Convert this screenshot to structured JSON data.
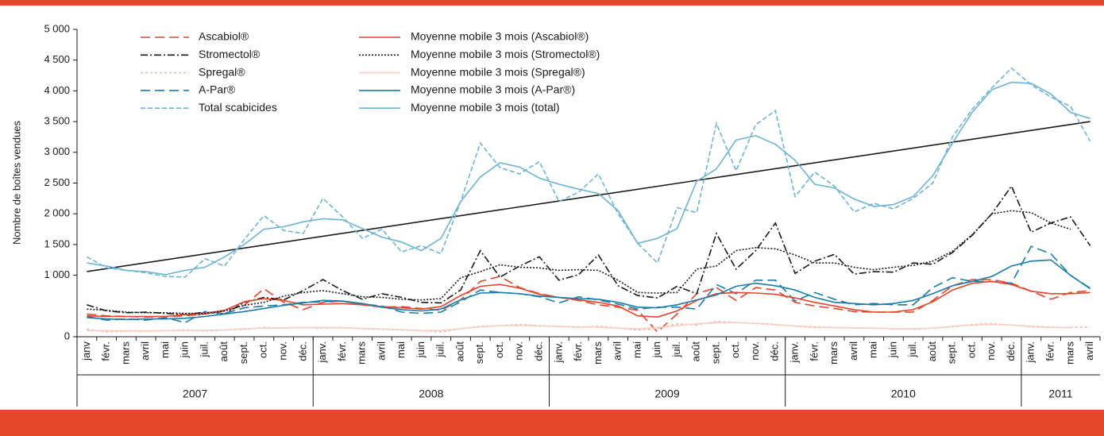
{
  "chart_data": {
    "type": "line",
    "ylabel": "Nombre de boîtes vendues",
    "ylim": [
      0,
      5000
    ],
    "yticks": [
      {
        "value": 0,
        "label": "0"
      },
      {
        "value": 1000,
        "label": "1 000"
      },
      {
        "value": 1500,
        "label": "1 500"
      },
      {
        "value": 2000,
        "label": "2 000"
      },
      {
        "value": 2500,
        "label": "2 500"
      },
      {
        "value": 3000,
        "label": "3 000"
      },
      {
        "value": 3500,
        "label": "3 500"
      },
      {
        "value": 4000,
        "label": "4 000"
      },
      {
        "value": 4500,
        "label": "4 500"
      },
      {
        "value": 5000,
        "label": "5 000"
      }
    ],
    "categories": [
      "janv",
      "févr.",
      "mars",
      "avril",
      "mai",
      "juin",
      "juil.",
      "août",
      "sept.",
      "oct.",
      "nov.",
      "déc.",
      "janv.",
      "févr.",
      "mars",
      "avril",
      "mai",
      "juin",
      "juil.",
      "août",
      "sept.",
      "oct.",
      "nov.",
      "déc.",
      "janv.",
      "févr.",
      "mars",
      "avril",
      "mai",
      "juin",
      "juil.",
      "août",
      "sept.",
      "oct.",
      "nov.",
      "déc.",
      "janv.",
      "févr.",
      "mars",
      "avril",
      "mai",
      "juin",
      "juil.",
      "août",
      "sept.",
      "oct.",
      "nov.",
      "déc.",
      "janv.",
      "févr.",
      "mars",
      "avril"
    ],
    "groups": [
      {
        "label": "2007",
        "count": 12
      },
      {
        "label": "2008",
        "count": 12
      },
      {
        "label": "2009",
        "count": 12
      },
      {
        "label": "2010",
        "count": 12
      },
      {
        "label": "2011",
        "count": 4
      }
    ],
    "series": [
      {
        "name": "Ascabiol®",
        "color": "#e8432b",
        "dash": "12,6",
        "values": [
          370,
          340,
          330,
          320,
          330,
          340,
          370,
          420,
          510,
          780,
          560,
          440,
          560,
          580,
          520,
          480,
          490,
          460,
          430,
          600,
          900,
          980,
          800,
          700,
          640,
          590,
          520,
          480,
          430,
          80,
          370,
          700,
          800,
          590,
          800,
          760,
          560,
          500,
          460,
          410,
          400,
          400,
          400,
          590,
          830,
          930,
          930,
          870,
          740,
          610,
          720,
          750
        ]
      },
      {
        "name": "Stromectol®",
        "color": "#1a1a1a",
        "dash": "9,3,2,3",
        "values": [
          520,
          420,
          390,
          400,
          380,
          360,
          400,
          370,
          560,
          640,
          600,
          750,
          930,
          750,
          610,
          700,
          640,
          560,
          550,
          760,
          1400,
          970,
          1150,
          1300,
          920,
          1010,
          1330,
          830,
          670,
          630,
          820,
          700,
          1680,
          1100,
          1400,
          1850,
          1030,
          1230,
          1340,
          1020,
          1060,
          1050,
          1200,
          1180,
          1370,
          1650,
          2000,
          2450,
          1700,
          1850,
          1950,
          1480
        ]
      },
      {
        "name": "Spregal®",
        "color": "#f4b3a3",
        "dash": "3,3",
        "values": [
          120,
          80,
          90,
          90,
          100,
          110,
          90,
          110,
          120,
          150,
          140,
          150,
          140,
          150,
          130,
          120,
          110,
          100,
          80,
          130,
          170,
          180,
          200,
          180,
          170,
          150,
          170,
          140,
          110,
          130,
          210,
          190,
          250,
          230,
          220,
          200,
          170,
          150,
          150,
          140,
          140,
          130,
          120,
          140,
          160,
          200,
          210,
          190,
          160,
          150,
          150,
          160
        ]
      },
      {
        "name": "A-Par®",
        "color": "#1a7ca8",
        "dash": "12,6",
        "values": [
          330,
          270,
          290,
          270,
          310,
          230,
          410,
          380,
          470,
          500,
          520,
          560,
          570,
          580,
          530,
          500,
          400,
          380,
          400,
          570,
          760,
          720,
          700,
          650,
          550,
          650,
          600,
          530,
          450,
          480,
          480,
          450,
          850,
          700,
          920,
          920,
          580,
          720,
          610,
          520,
          540,
          520,
          520,
          800,
          960,
          900,
          900,
          870,
          1470,
          1350,
          1000,
          790
        ]
      },
      {
        "name": "Total scabicides",
        "color": "#6db4d4",
        "dash": "6,3",
        "values": [
          1300,
          1120,
          1080,
          1040,
          980,
          970,
          1270,
          1150,
          1580,
          1970,
          1730,
          1680,
          2250,
          1950,
          1600,
          1750,
          1380,
          1480,
          1350,
          2200,
          3150,
          2750,
          2650,
          2850,
          2200,
          2350,
          2650,
          2000,
          1520,
          1200,
          2100,
          2020,
          3470,
          2700,
          3450,
          3680,
          2280,
          2680,
          2450,
          2030,
          2170,
          2080,
          2250,
          2500,
          3250,
          3700,
          4050,
          4370,
          4100,
          3900,
          3750,
          3180
        ]
      },
      {
        "name": "Moyenne mobile 3 mois (Ascabiol®)",
        "color": "#e8432b",
        "dash": "",
        "values": [
          340,
          330,
          330,
          330,
          330,
          360,
          380,
          430,
          570,
          620,
          590,
          520,
          530,
          540,
          520,
          490,
          470,
          450,
          490,
          670,
          820,
          850,
          790,
          690,
          640,
          600,
          560,
          500,
          340,
          320,
          420,
          590,
          700,
          720,
          710,
          690,
          630,
          560,
          500,
          440,
          400,
          400,
          440,
          570,
          760,
          870,
          900,
          850,
          740,
          700,
          700,
          720
        ]
      },
      {
        "name": "Moyenne mobile 3 mois (Stromectol®)",
        "color": "#1a1a1a",
        "dash": "2,2",
        "values": [
          450,
          430,
          400,
          390,
          390,
          380,
          380,
          420,
          510,
          560,
          660,
          720,
          750,
          700,
          650,
          640,
          610,
          600,
          620,
          960,
          1060,
          1170,
          1130,
          1120,
          1080,
          1090,
          1080,
          920,
          720,
          710,
          720,
          1100,
          1150,
          1400,
          1450,
          1430,
          1330,
          1200,
          1200,
          1130,
          1090,
          1130,
          1160,
          1230,
          1390,
          1660,
          2000,
          2050,
          2020,
          1850,
          1750,
          null
        ]
      },
      {
        "name": "Moyenne mobile 3 mois (Spregal®)",
        "color": "#f8cfc4",
        "dash": "",
        "values": [
          100,
          100,
          95,
          95,
          100,
          100,
          105,
          110,
          130,
          140,
          145,
          150,
          150,
          145,
          135,
          125,
          115,
          100,
          105,
          130,
          160,
          180,
          185,
          175,
          165,
          160,
          155,
          140,
          130,
          150,
          180,
          210,
          225,
          230,
          215,
          195,
          175,
          160,
          150,
          145,
          140,
          130,
          130,
          140,
          170,
          190,
          200,
          190,
          170,
          155,
          150,
          null
        ]
      },
      {
        "name": "Moyenne mobile 3 mois (A-Par®)",
        "color": "#1a7ca8",
        "dash": "",
        "values": [
          310,
          290,
          280,
          290,
          290,
          300,
          330,
          370,
          410,
          460,
          510,
          550,
          590,
          580,
          540,
          480,
          440,
          420,
          450,
          600,
          710,
          720,
          700,
          660,
          640,
          620,
          610,
          560,
          480,
          470,
          520,
          600,
          680,
          820,
          870,
          830,
          760,
          640,
          560,
          540,
          520,
          540,
          590,
          700,
          830,
          900,
          980,
          1150,
          1230,
          1250,
          1000,
          780
        ]
      },
      {
        "name": "Moyenne mobile 3 mois (total)",
        "color": "#6db4d4",
        "dash": "",
        "values": [
          1200,
          1150,
          1080,
          1060,
          1010,
          1080,
          1130,
          1300,
          1500,
          1750,
          1790,
          1870,
          1920,
          1900,
          1760,
          1620,
          1540,
          1400,
          1600,
          2200,
          2600,
          2830,
          2760,
          2580,
          2480,
          2400,
          2330,
          2050,
          1520,
          1600,
          1760,
          2530,
          2730,
          3200,
          3270,
          3130,
          2870,
          2480,
          2420,
          2240,
          2120,
          2150,
          2280,
          2620,
          3150,
          3650,
          4020,
          4140,
          4120,
          3950,
          3650,
          3550
        ]
      }
    ],
    "trendline": {
      "color": "#1a1a1a",
      "values": [
        1060,
        3500
      ]
    }
  }
}
